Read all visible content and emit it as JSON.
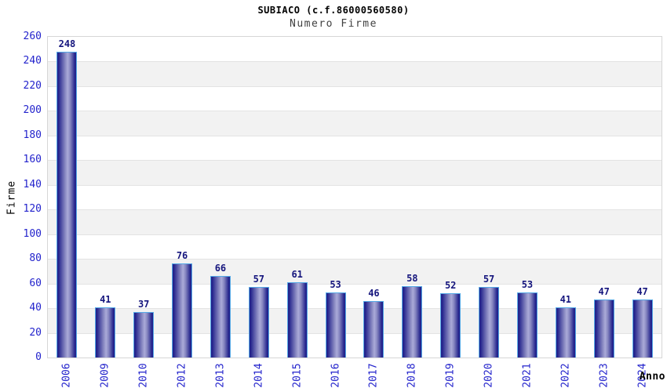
{
  "chart_data": {
    "type": "bar",
    "title": "SUBIACO (c.f.86000560580)",
    "subtitle": "Numero Firme",
    "xlabel": "Anno",
    "ylabel": "Firme",
    "categories": [
      "2006",
      "2009",
      "2010",
      "2012",
      "2013",
      "2014",
      "2015",
      "2016",
      "2017",
      "2018",
      "2019",
      "2020",
      "2021",
      "2022",
      "2023",
      "2024"
    ],
    "values": [
      248,
      41,
      37,
      76,
      66,
      57,
      61,
      53,
      46,
      58,
      52,
      57,
      53,
      41,
      47,
      47
    ],
    "ylim": [
      0,
      260
    ],
    "ytick_step": 20,
    "ytick_labels": [
      "0",
      "20",
      "40",
      "60",
      "80",
      "100",
      "120",
      "140",
      "160",
      "180",
      "200",
      "220",
      "240",
      "260"
    ],
    "grid": true,
    "legend_position": "none",
    "colors": {
      "tick_label": "#2323cc",
      "value_label": "#15157d",
      "bar_dark": "#23238c",
      "bar_mid": "#8989c2",
      "bar_light": "#aaaad8",
      "bar_border": "#55a9e6",
      "band_gray": "#f2f2f2",
      "band_white": "#ffffff",
      "gridline": "#e3e3e3",
      "plot_border": "#d6d6d6",
      "title": "#000000",
      "subtitle": "#3f3f3f",
      "axis_title": "#000000"
    }
  }
}
